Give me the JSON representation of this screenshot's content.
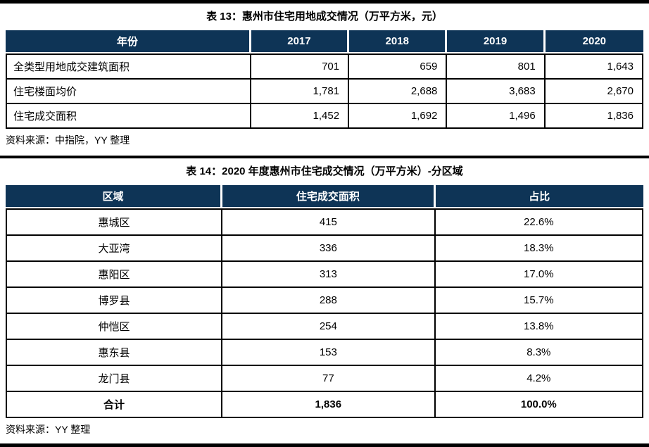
{
  "accent_color": "#0E3456",
  "border_color": "#000000",
  "table13": {
    "title": "表 13：惠州市住宅用地成交情况（万平方米，元）",
    "columns": [
      "年份",
      "2017",
      "2018",
      "2019",
      "2020"
    ],
    "rows": [
      {
        "label": "全类型用地成交建筑面积",
        "values": [
          "701",
          "659",
          "801",
          "1,643"
        ]
      },
      {
        "label": "住宅楼面均价",
        "values": [
          "1,781",
          "2,688",
          "3,683",
          "2,670"
        ]
      },
      {
        "label": "住宅成交面积",
        "values": [
          "1,452",
          "1,692",
          "1,496",
          "1,836"
        ]
      }
    ],
    "source": "资料来源：中指院，YY 整理"
  },
  "table14": {
    "title": "表 14：2020 年度惠州市住宅成交情况（万平方米）-分区域",
    "columns": [
      "区域",
      "住宅成交面积",
      "占比"
    ],
    "rows": [
      {
        "region": "惠城区",
        "area": "415",
        "share": "22.6%"
      },
      {
        "region": "大亚湾",
        "area": "336",
        "share": "18.3%"
      },
      {
        "region": "惠阳区",
        "area": "313",
        "share": "17.0%"
      },
      {
        "region": "博罗县",
        "area": "288",
        "share": "15.7%"
      },
      {
        "region": "仲恺区",
        "area": "254",
        "share": "13.8%"
      },
      {
        "region": "惠东县",
        "area": "153",
        "share": "8.3%"
      },
      {
        "region": "龙门县",
        "area": "77",
        "share": "4.2%"
      },
      {
        "region": "合计",
        "area": "1,836",
        "share": "100.0%"
      }
    ],
    "source": "资料来源：YY 整理"
  }
}
